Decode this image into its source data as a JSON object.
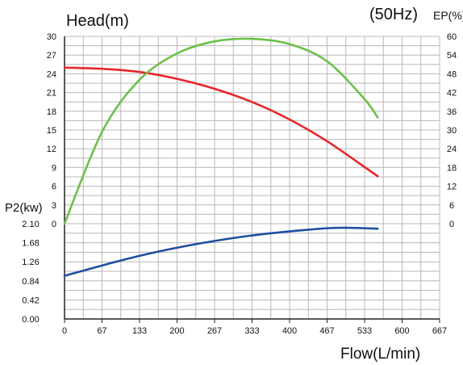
{
  "chart_data": {
    "type": "line",
    "annotation": "(50Hz)",
    "x_axis": {
      "label": "Flow(L/min)",
      "ticks": [
        "0",
        "67",
        "133",
        "200",
        "267",
        "333",
        "400",
        "467",
        "533",
        "600",
        "667"
      ],
      "range": [
        0,
        667
      ]
    },
    "head_axis": {
      "label": "Head(m)",
      "ticks": [
        "0",
        "3",
        "6",
        "9",
        "12",
        "15",
        "18",
        "21",
        "24",
        "27",
        "30"
      ],
      "range": [
        0,
        30
      ]
    },
    "ep_axis": {
      "label": "EP(%)",
      "ticks": [
        "0",
        "6",
        "12",
        "18",
        "24",
        "30",
        "36",
        "42",
        "48",
        "54",
        "60"
      ],
      "range": [
        0,
        60
      ]
    },
    "p2_axis": {
      "label": "P2(kw)",
      "ticks": [
        "0.00",
        "0.42",
        "0.84",
        "1.26",
        "1.68",
        "2.10"
      ],
      "range": [
        0,
        2.1
      ]
    },
    "grid": true,
    "series": [
      {
        "axis": "head",
        "color": "#e8262a",
        "x": [
          0,
          67,
          133,
          200,
          267,
          333,
          400,
          467,
          533,
          557
        ],
        "y": [
          25.0,
          24.8,
          24.3,
          23.2,
          21.6,
          19.5,
          16.7,
          13.2,
          9.1,
          7.6
        ]
      },
      {
        "axis": "ep",
        "color": "#6cc04a",
        "x": [
          0,
          67,
          133,
          200,
          267,
          333,
          400,
          467,
          533,
          557
        ],
        "y": [
          0,
          29.5,
          46.0,
          54.5,
          58.4,
          59.2,
          57.5,
          52.0,
          40.0,
          34.0
        ]
      },
      {
        "axis": "p2",
        "color": "#1e4fa0",
        "x": [
          0,
          67,
          133,
          200,
          267,
          333,
          400,
          467,
          500,
          533,
          557
        ],
        "y": [
          0.95,
          1.18,
          1.39,
          1.57,
          1.72,
          1.84,
          1.93,
          2.0,
          2.01,
          2.0,
          1.99
        ]
      }
    ]
  }
}
